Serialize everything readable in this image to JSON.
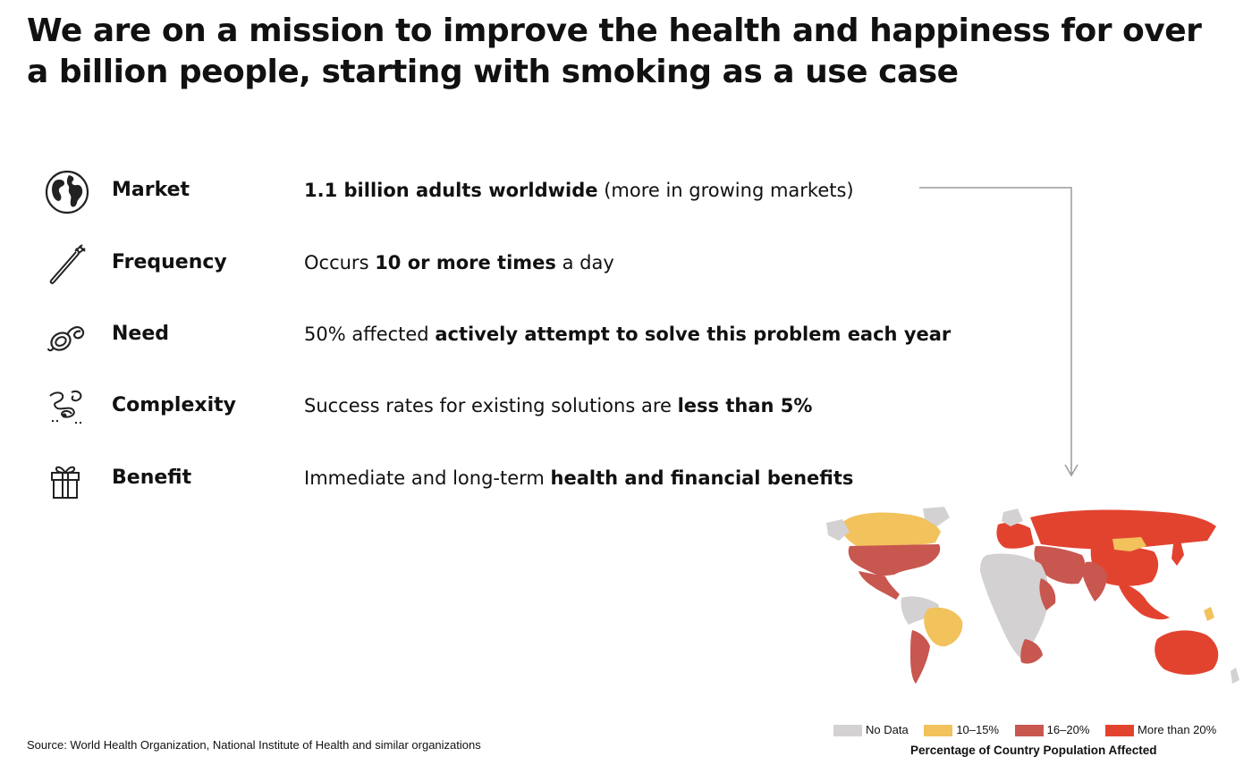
{
  "title": "We are on a mission to improve the health and happiness for over a billion people, starting with smoking as a use case",
  "rows": [
    {
      "icon": "globe-icon",
      "label": "Market",
      "desc": [
        {
          "text": "1.1 billion adults worldwide",
          "bold": true
        },
        {
          "text": " (more in growing markets)",
          "bold": false
        }
      ]
    },
    {
      "icon": "toothbrush-icon",
      "label": "Frequency",
      "desc": [
        {
          "text": "Occurs ",
          "bold": false
        },
        {
          "text": "10 or more times",
          "bold": true
        },
        {
          "text": " a day",
          "bold": false
        }
      ]
    },
    {
      "icon": "rope-icon",
      "label": "Need",
      "desc": [
        {
          "text": "50% affected ",
          "bold": false
        },
        {
          "text": "actively attempt to solve this problem each year",
          "bold": true
        }
      ]
    },
    {
      "icon": "tangled-path-icon",
      "label": "Complexity",
      "desc": [
        {
          "text": "Success rates for existing solutions are ",
          "bold": false
        },
        {
          "text": "less than 5%",
          "bold": true
        }
      ]
    },
    {
      "icon": "gift-icon",
      "label": "Benefit",
      "desc": [
        {
          "text": "Immediate and long-term ",
          "bold": false
        },
        {
          "text": "health and financial benefits",
          "bold": true
        }
      ]
    }
  ],
  "map": {
    "caption": "Percentage of Country Population Affected",
    "legend": [
      {
        "label": "No Data",
        "color": "#d3d1d1"
      },
      {
        "label": "10–15%",
        "color": "#f2c25c"
      },
      {
        "label": "16–20%",
        "color": "#c8574f"
      },
      {
        "label": "More than 20%",
        "color": "#e2432f"
      }
    ]
  },
  "source": "Source: World Health Organization, National Institute of Health and similar organizations"
}
